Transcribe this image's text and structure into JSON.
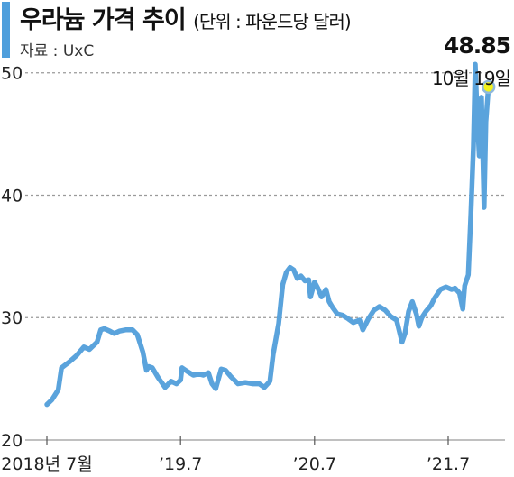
{
  "header": {
    "title": "우라늄 가격 추이",
    "unit": "(단위 : 파운드당 달러)",
    "source": "자료 : UxC"
  },
  "colors": {
    "line": "#5aa3dc",
    "accent_bar": "#4f9fdc",
    "marker_fill": "#f2f21a",
    "grid": "#9a9a9a"
  },
  "chart_data": {
    "type": "line",
    "title": "우라늄 가격 추이",
    "unit": "(단위 : 파운드당 달러)",
    "xlabel": "",
    "ylabel": "",
    "ylim": [
      20,
      53
    ],
    "yticks": [
      20,
      30,
      40,
      50
    ],
    "xticks": [
      {
        "x": "2018-07",
        "label": "2018년 7월"
      },
      {
        "x": "2019-07",
        "label": "’19.7"
      },
      {
        "x": "2020-07",
        "label": "’20.7"
      },
      {
        "x": "2021-07",
        "label": "’21.7"
      }
    ],
    "grid": true,
    "annotation": {
      "x": "2021-10-19",
      "value": "48.85",
      "label": "10월 19일"
    },
    "series": [
      {
        "values": [
          [
            "2018-07-01",
            22.9
          ],
          [
            "2018-07-15",
            23.3
          ],
          [
            "2018-08-01",
            24.1
          ],
          [
            "2018-08-10",
            25.9
          ],
          [
            "2018-09-01",
            26.4
          ],
          [
            "2018-09-20",
            26.9
          ],
          [
            "2018-10-10",
            27.6
          ],
          [
            "2018-10-25",
            27.4
          ],
          [
            "2018-11-15",
            28.0
          ],
          [
            "2018-11-25",
            29.0
          ],
          [
            "2018-12-05",
            29.1
          ],
          [
            "2018-12-20",
            28.9
          ],
          [
            "2019-01-01",
            28.7
          ],
          [
            "2019-01-15",
            28.9
          ],
          [
            "2019-02-01",
            29.0
          ],
          [
            "2019-02-20",
            29.0
          ],
          [
            "2019-03-05",
            28.6
          ],
          [
            "2019-03-20",
            27.2
          ],
          [
            "2019-03-30",
            25.7
          ],
          [
            "2019-04-05",
            26.0
          ],
          [
            "2019-04-15",
            25.9
          ],
          [
            "2019-05-01",
            25.1
          ],
          [
            "2019-05-20",
            24.3
          ],
          [
            "2019-06-05",
            24.8
          ],
          [
            "2019-06-20",
            24.6
          ],
          [
            "2019-07-01",
            24.9
          ],
          [
            "2019-07-05",
            25.9
          ],
          [
            "2019-07-20",
            25.6
          ],
          [
            "2019-08-05",
            25.3
          ],
          [
            "2019-08-20",
            25.4
          ],
          [
            "2019-09-01",
            25.3
          ],
          [
            "2019-09-15",
            25.5
          ],
          [
            "2019-09-25",
            24.6
          ],
          [
            "2019-10-05",
            24.2
          ],
          [
            "2019-10-20",
            25.8
          ],
          [
            "2019-11-01",
            25.7
          ],
          [
            "2019-11-15",
            25.2
          ],
          [
            "2019-12-05",
            24.6
          ],
          [
            "2019-12-25",
            24.7
          ],
          [
            "2020-01-15",
            24.6
          ],
          [
            "2020-02-01",
            24.6
          ],
          [
            "2020-02-15",
            24.3
          ],
          [
            "2020-03-01",
            24.8
          ],
          [
            "2020-03-10",
            27.0
          ],
          [
            "2020-03-25",
            29.5
          ],
          [
            "2020-04-05",
            32.7
          ],
          [
            "2020-04-15",
            33.7
          ],
          [
            "2020-04-25",
            34.1
          ],
          [
            "2020-05-05",
            33.9
          ],
          [
            "2020-05-15",
            33.2
          ],
          [
            "2020-05-25",
            33.4
          ],
          [
            "2020-06-05",
            33.0
          ],
          [
            "2020-06-15",
            33.1
          ],
          [
            "2020-06-20",
            31.7
          ],
          [
            "2020-07-01",
            32.9
          ],
          [
            "2020-07-10",
            32.4
          ],
          [
            "2020-07-20",
            31.7
          ],
          [
            "2020-08-01",
            32.3
          ],
          [
            "2020-08-10",
            31.3
          ],
          [
            "2020-08-20",
            30.8
          ],
          [
            "2020-09-01",
            30.3
          ],
          [
            "2020-09-15",
            30.2
          ],
          [
            "2020-10-01",
            29.9
          ],
          [
            "2020-10-15",
            29.6
          ],
          [
            "2020-11-01",
            29.8
          ],
          [
            "2020-11-10",
            29.0
          ],
          [
            "2020-11-25",
            29.9
          ],
          [
            "2020-12-10",
            30.6
          ],
          [
            "2020-12-25",
            30.9
          ],
          [
            "2021-01-10",
            30.6
          ],
          [
            "2021-01-25",
            30.1
          ],
          [
            "2021-02-10",
            29.8
          ],
          [
            "2021-02-25",
            28.0
          ],
          [
            "2021-03-05",
            28.7
          ],
          [
            "2021-03-15",
            30.5
          ],
          [
            "2021-03-25",
            31.3
          ],
          [
            "2021-04-05",
            30.3
          ],
          [
            "2021-04-12",
            29.3
          ],
          [
            "2021-04-20",
            30.0
          ],
          [
            "2021-05-01",
            30.5
          ],
          [
            "2021-05-15",
            31.0
          ],
          [
            "2021-05-25",
            31.6
          ],
          [
            "2021-06-10",
            32.3
          ],
          [
            "2021-06-25",
            32.5
          ],
          [
            "2021-07-10",
            32.3
          ],
          [
            "2021-07-20",
            32.4
          ],
          [
            "2021-08-01",
            32.0
          ],
          [
            "2021-08-10",
            30.7
          ],
          [
            "2021-08-15",
            32.6
          ],
          [
            "2021-08-25",
            33.5
          ],
          [
            "2021-09-01",
            38.5
          ],
          [
            "2021-09-08",
            44.0
          ],
          [
            "2021-09-13",
            50.7
          ],
          [
            "2021-09-18",
            46.5
          ],
          [
            "2021-09-24",
            43.2
          ],
          [
            "2021-09-30",
            48.0
          ],
          [
            "2021-10-07",
            39.0
          ],
          [
            "2021-10-12",
            46.0
          ],
          [
            "2021-10-19",
            48.85
          ]
        ]
      }
    ]
  }
}
